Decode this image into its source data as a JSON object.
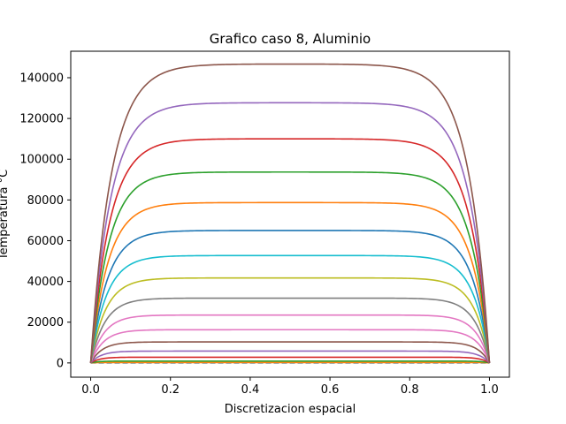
{
  "chart_data": {
    "type": "line",
    "title": "Grafico caso 8, Aluminio",
    "xlabel": "Discretizacion espacial",
    "ylabel": "Temperatura °C",
    "xlim": [
      -0.05,
      1.05
    ],
    "ylim": [
      -7000,
      153000
    ],
    "xticks": [
      0.0,
      0.2,
      0.4,
      0.6,
      0.8,
      1.0
    ],
    "xtick_labels": [
      "0.0",
      "0.2",
      "0.4",
      "0.6",
      "0.8",
      "1.0"
    ],
    "yticks": [
      0,
      20000,
      40000,
      60000,
      80000,
      100000,
      120000,
      140000
    ],
    "ytick_labels": [
      "0",
      "20000",
      "40000",
      "60000",
      "80000",
      "100000",
      "120000",
      "140000"
    ],
    "grid": false,
    "legend": "none",
    "profile_shape": "plateau between x=0 and x=1, both ends held at 0",
    "series": [
      {
        "plateau": 0,
        "width": 0.006,
        "color": "#1f77b4"
      },
      {
        "plateau": 200,
        "width": 0.012,
        "color": "#ff7f0e"
      },
      {
        "plateau": 900,
        "width": 0.018,
        "color": "#2ca02c"
      },
      {
        "plateau": 2800,
        "width": 0.022,
        "color": "#d62728"
      },
      {
        "plateau": 5800,
        "width": 0.026,
        "color": "#9467bd"
      },
      {
        "plateau": 10300,
        "width": 0.029,
        "color": "#8c564b"
      },
      {
        "plateau": 16300,
        "width": 0.032,
        "color": "#e377c2"
      },
      {
        "plateau": 23500,
        "width": 0.034,
        "color": "#e377c2"
      },
      {
        "plateau": 31800,
        "width": 0.036,
        "color": "#7f7f7f"
      },
      {
        "plateau": 41700,
        "width": 0.038,
        "color": "#bcbd22"
      },
      {
        "plateau": 52700,
        "width": 0.04,
        "color": "#17becf"
      },
      {
        "plateau": 65000,
        "width": 0.042,
        "color": "#1f77b4"
      },
      {
        "plateau": 78700,
        "width": 0.044,
        "color": "#ff7f0e"
      },
      {
        "plateau": 93700,
        "width": 0.046,
        "color": "#2ca02c"
      },
      {
        "plateau": 110000,
        "width": 0.048,
        "color": "#d62728"
      },
      {
        "plateau": 127700,
        "width": 0.05,
        "color": "#9467bd"
      },
      {
        "plateau": 146700,
        "width": 0.052,
        "color": "#8c564b"
      }
    ]
  }
}
